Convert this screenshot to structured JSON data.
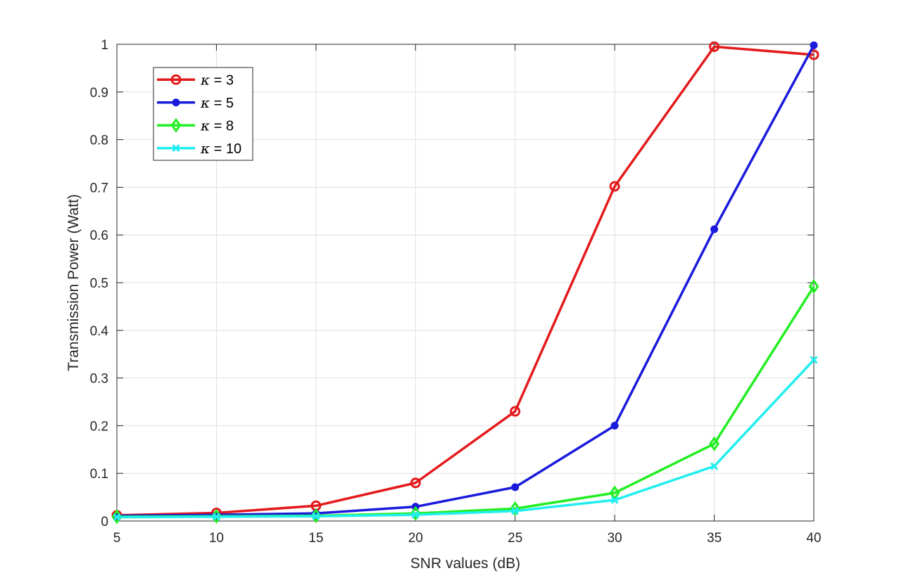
{
  "chart_data": {
    "type": "line",
    "title": "",
    "xlabel": "SNR values (dB)",
    "ylabel": "Transmission Power (Watt)",
    "xlim": [
      5,
      40
    ],
    "ylim": [
      0,
      1
    ],
    "x": [
      5,
      10,
      15,
      20,
      25,
      30,
      35,
      40
    ],
    "xticks": [
      "5",
      "10",
      "15",
      "20",
      "25",
      "30",
      "35",
      "40"
    ],
    "yticks": [
      "0",
      "0.1",
      "0.2",
      "0.3",
      "0.4",
      "0.5",
      "0.6",
      "0.7",
      "0.8",
      "0.9",
      "1"
    ],
    "grid": true,
    "legend_position": "top-left",
    "series": [
      {
        "name": "κ = 3",
        "symbol": "κ",
        "label_value": "= 3",
        "color": "#e31a1c",
        "marker": "circle-open",
        "values": [
          0.012,
          0.017,
          0.032,
          0.08,
          0.23,
          0.702,
          0.995,
          0.978
        ]
      },
      {
        "name": "κ = 5",
        "symbol": "κ",
        "label_value": "= 5",
        "color": "#1a1adc",
        "marker": "circle-filled",
        "values": [
          0.011,
          0.013,
          0.016,
          0.03,
          0.071,
          0.2,
          0.612,
          0.998
        ]
      },
      {
        "name": "κ = 8",
        "symbol": "κ",
        "label_value": "= 8",
        "color": "#22ee22",
        "marker": "diamond",
        "values": [
          0.009,
          0.01,
          0.011,
          0.016,
          0.026,
          0.059,
          0.162,
          0.492
        ]
      },
      {
        "name": "κ = 10",
        "symbol": "κ",
        "label_value": "= 10",
        "color": "#22eeee",
        "marker": "x",
        "values": [
          0.008,
          0.009,
          0.01,
          0.013,
          0.021,
          0.044,
          0.115,
          0.338
        ]
      }
    ]
  }
}
